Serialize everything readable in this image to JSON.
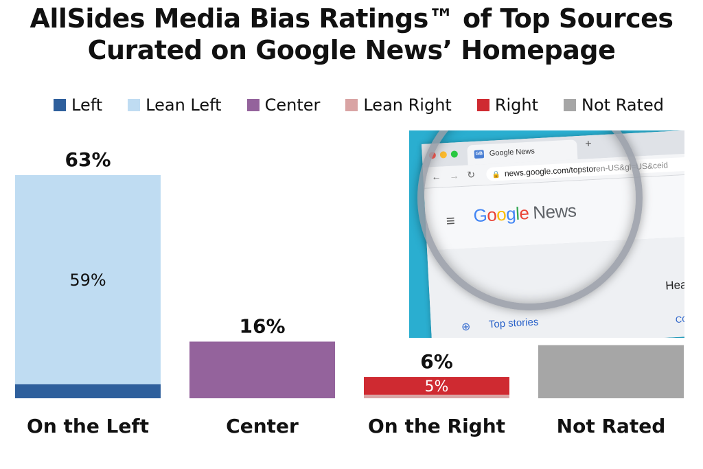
{
  "title": {
    "line1": "AllSides Media Bias Ratings™ of Top Sources",
    "line2": "Curated on Google News’ Homepage"
  },
  "legend": [
    {
      "label": "Left",
      "color": "#2e5f9c"
    },
    {
      "label": "Lean Left",
      "color": "#bfdcf2"
    },
    {
      "label": "Center",
      "color": "#94639c"
    },
    {
      "label": "Lean Right",
      "color": "#d9a4a4"
    },
    {
      "label": "Right",
      "color": "#cf2a31"
    },
    {
      "label": "Not Rated",
      "color": "#a6a6a6"
    }
  ],
  "chart_data": {
    "type": "bar",
    "stacked": true,
    "categories": [
      "On the Left",
      "Center",
      "On the Right",
      "Not Rated"
    ],
    "series": [
      {
        "name": "Left",
        "values": [
          4,
          0,
          0,
          0
        ],
        "color": "#2e5f9c"
      },
      {
        "name": "Lean Left",
        "values": [
          59,
          0,
          0,
          0
        ],
        "color": "#bfdcf2"
      },
      {
        "name": "Center",
        "values": [
          0,
          16,
          0,
          0
        ],
        "color": "#94639c"
      },
      {
        "name": "Lean Right",
        "values": [
          0,
          0,
          1,
          0
        ],
        "color": "#d9a4a4"
      },
      {
        "name": "Right",
        "values": [
          0,
          0,
          5,
          0
        ],
        "color": "#cf2a31"
      },
      {
        "name": "Not Rated",
        "values": [
          0,
          0,
          0,
          15
        ],
        "color": "#a6a6a6"
      }
    ],
    "totals": [
      "63%",
      "16%",
      "6%",
      ""
    ],
    "segment_labels": [
      {
        "category": "On the Left",
        "series": "Lean Left",
        "text": "59%"
      },
      {
        "category": "On the Right",
        "series": "Right",
        "text": "5%"
      }
    ],
    "ylim": [
      0,
      63
    ],
    "grid": false,
    "legend_position": "top"
  },
  "inset": {
    "tab_title": "Google News",
    "favicon_text": "GB",
    "new_tab": "+",
    "url": "news.google.com/topstor",
    "url_tail": "en-US&gl=US&ceid",
    "logo_google": [
      "G",
      "o",
      "o",
      "g",
      "l",
      "e"
    ],
    "logo_colors": [
      "#4285f4",
      "#ea4335",
      "#fbbc05",
      "#4285f4",
      "#34a853",
      "#ea4335"
    ],
    "logo_news": "News",
    "side_item": "Top stories",
    "heading": "Headl",
    "link": "COVI"
  }
}
